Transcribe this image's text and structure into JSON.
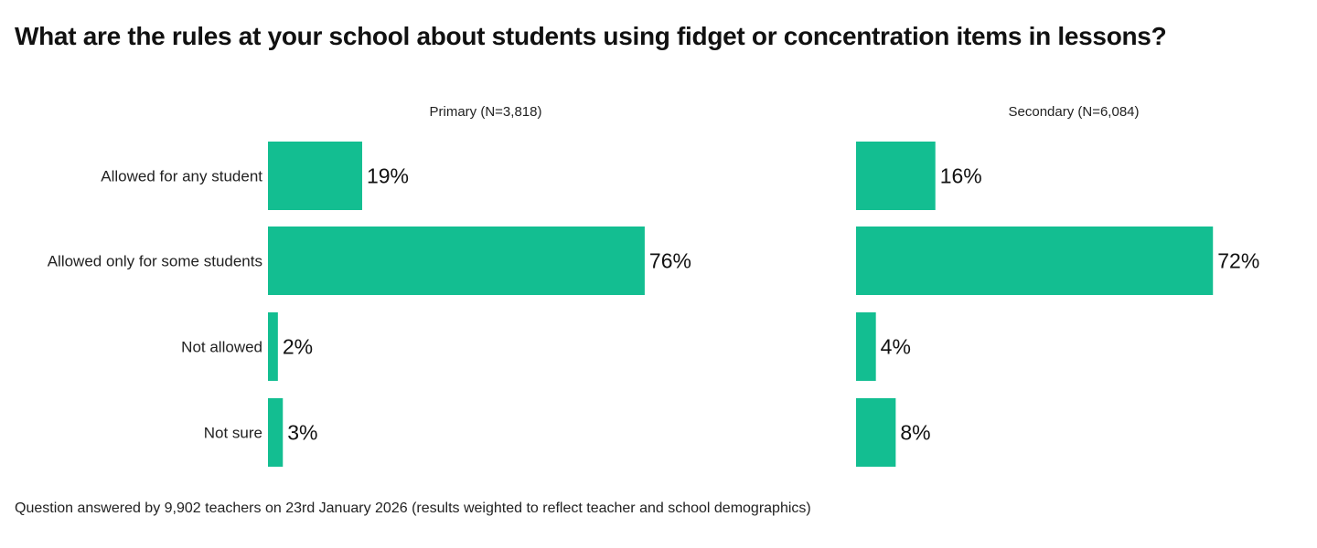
{
  "chart_data": {
    "type": "bar",
    "orientation": "horizontal",
    "title": "What are the rules at your school about students using fidget or concentration items in lessons?",
    "footnote": "Question answered by 9,902 teachers on 23rd January 2026 (results weighted to reflect teacher and school demographics)",
    "categories": [
      "Allowed for any student",
      "Allowed only for some students",
      "Not allowed",
      "Not sure"
    ],
    "unit": "%",
    "color": "#13BE91",
    "xlim": [
      0,
      100
    ],
    "grid": false,
    "panels": [
      {
        "name": "Primary (N=3,818)",
        "values": [
          19,
          76,
          2,
          3
        ]
      },
      {
        "name": "Secondary (N=6,084)",
        "values": [
          16,
          72,
          4,
          8
        ]
      }
    ]
  }
}
